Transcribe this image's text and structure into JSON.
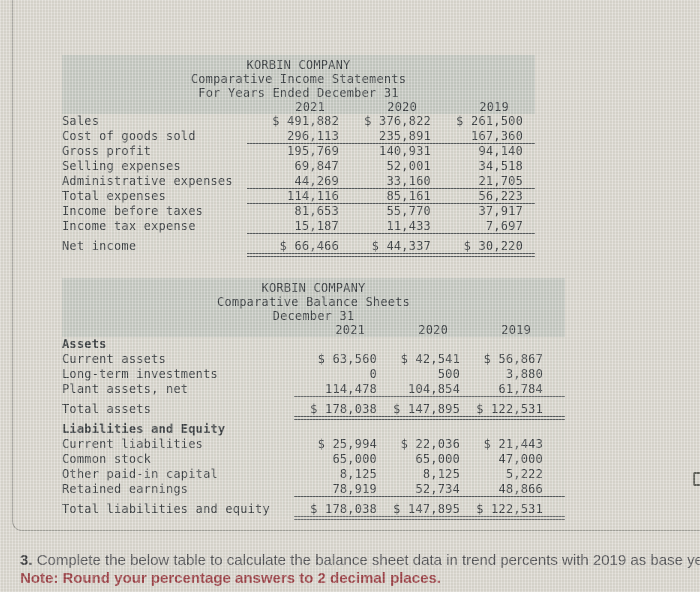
{
  "income_statement": {
    "title_lines": [
      "KORBIN COMPANY",
      "Comparative Income Statements",
      "For Years Ended December 31"
    ],
    "years": [
      "2021",
      "2020",
      "2019"
    ],
    "rows": [
      {
        "label": "Sales",
        "values": [
          "$ 491,882",
          "$ 376,822",
          "$ 261,500"
        ]
      },
      {
        "label": "Cost of goods sold",
        "values": [
          "296,113",
          "235,891",
          "167,360"
        ],
        "rule": "single"
      },
      {
        "label": "Gross profit",
        "values": [
          "195,769",
          "140,931",
          "94,140"
        ]
      },
      {
        "label": "Selling expenses",
        "values": [
          "69,847",
          "52,001",
          "34,518"
        ]
      },
      {
        "label": "Administrative expenses",
        "values": [
          "44,269",
          "33,160",
          "21,705"
        ],
        "rule": "single"
      },
      {
        "label": "Total expenses",
        "values": [
          "114,116",
          "85,161",
          "56,223"
        ],
        "rule": "single"
      },
      {
        "label": "Income before taxes",
        "values": [
          "81,653",
          "55,770",
          "37,917"
        ]
      },
      {
        "label": "Income tax expense",
        "values": [
          "15,187",
          "11,433",
          "7,697"
        ],
        "rule": "single"
      },
      {
        "label": "Net income",
        "values": [
          "$ 66,466",
          "$ 44,337",
          "$ 30,220"
        ],
        "rule": "double",
        "space_before": true
      }
    ]
  },
  "balance_sheet": {
    "title_lines": [
      "KORBIN COMPANY",
      "Comparative Balance Sheets",
      "December 31"
    ],
    "years": [
      "2021",
      "2020",
      "2019"
    ],
    "rows": [
      {
        "label": "Assets",
        "section": true
      },
      {
        "label": "Current assets",
        "values": [
          "$ 63,560",
          "$ 42,541",
          "$ 56,867"
        ]
      },
      {
        "label": "Long-term investments",
        "values": [
          "0",
          "500",
          "3,880"
        ]
      },
      {
        "label": "Plant assets, net",
        "values": [
          "114,478",
          "104,854",
          "61,784"
        ],
        "rule": "single"
      },
      {
        "label": "Total assets",
        "values": [
          "$ 178,038",
          "$ 147,895",
          "$ 122,531"
        ],
        "rule": "double",
        "space_before": true
      },
      {
        "label": "Liabilities and Equity",
        "section": true,
        "space_before": true
      },
      {
        "label": "Current liabilities",
        "values": [
          "$ 25,994",
          "$ 22,036",
          "$ 21,443"
        ]
      },
      {
        "label": "Common stock",
        "values": [
          "65,000",
          "65,000",
          "47,000"
        ]
      },
      {
        "label": "Other paid-in capital",
        "values": [
          "8,125",
          "8,125",
          "5,222"
        ]
      },
      {
        "label": "Retained earnings",
        "values": [
          "78,919",
          "52,734",
          "48,866"
        ],
        "rule": "single"
      },
      {
        "label": "Total liabilities and equity",
        "values": [
          "$ 178,038",
          "$ 147,895",
          "$ 122,531"
        ],
        "rule": "double",
        "space_before": true
      }
    ]
  },
  "footer": {
    "item_number": "3.",
    "instruction": "Complete the below table to calculate the balance sheet data in trend percents with 2019 as base ye",
    "note": "Note: Round your percentage answers to 2 decimal places."
  },
  "icons": {
    "edge_artifact": "partial-bracket"
  },
  "colors": {
    "page_bg": "#dcd8d0",
    "band_bg": "#c7cac3",
    "table_text": "#393d40",
    "rule": "#565a5c",
    "note_text": "#9c4045",
    "body_text": "#515154"
  }
}
